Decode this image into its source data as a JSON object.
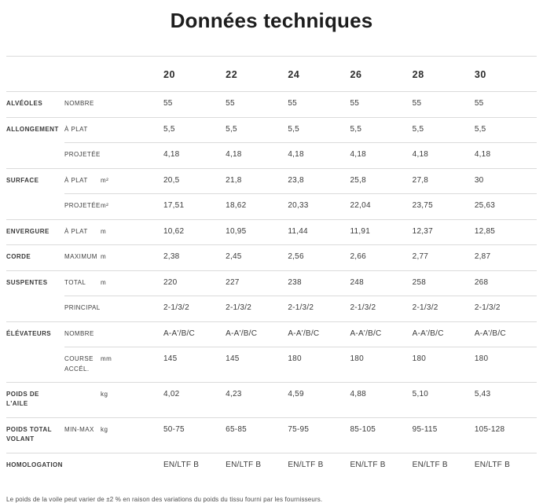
{
  "page": {
    "title": "Données techniques",
    "footnote": "Le poids de la voile peut varier de ±2 % en raison des variations du poids du tissu fourni par les fournisseurs."
  },
  "table": {
    "sizes": [
      "20",
      "22",
      "24",
      "26",
      "28",
      "30"
    ],
    "rows": [
      {
        "group": "ALVÉOLES",
        "sub": "NOMBRE",
        "unit": "",
        "values": [
          "55",
          "55",
          "55",
          "55",
          "55",
          "55"
        ]
      },
      {
        "group": "ALLONGEMENT",
        "sub": "À PLAT",
        "unit": "",
        "values": [
          "5,5",
          "5,5",
          "5,5",
          "5,5",
          "5,5",
          "5,5"
        ]
      },
      {
        "group": "",
        "sub": "PROJETÉE",
        "unit": "",
        "values": [
          "4,18",
          "4,18",
          "4,18",
          "4,18",
          "4,18",
          "4,18"
        ]
      },
      {
        "group": "SURFACE",
        "sub": "À PLAT",
        "unit": "m²",
        "values": [
          "20,5",
          "21,8",
          "23,8",
          "25,8",
          "27,8",
          "30"
        ]
      },
      {
        "group": "",
        "sub": "PROJETÉE",
        "unit": "m²",
        "values": [
          "17,51",
          "18,62",
          "20,33",
          "22,04",
          "23,75",
          "25,63"
        ]
      },
      {
        "group": "ENVERGURE",
        "sub": "À PLAT",
        "unit": "m",
        "values": [
          "10,62",
          "10,95",
          "11,44",
          "11,91",
          "12,37",
          "12,85"
        ]
      },
      {
        "group": "CORDE",
        "sub": "MAXIMUM",
        "unit": "m",
        "values": [
          "2,38",
          "2,45",
          "2,56",
          "2,66",
          "2,77",
          "2,87"
        ]
      },
      {
        "group": "SUSPENTES",
        "sub": "TOTAL",
        "unit": "m",
        "values": [
          "220",
          "227",
          "238",
          "248",
          "258",
          "268"
        ]
      },
      {
        "group": "",
        "sub": "PRINCIPAL",
        "unit": "",
        "values": [
          "2-1/3/2",
          "2-1/3/2",
          "2-1/3/2",
          "2-1/3/2",
          "2-1/3/2",
          "2-1/3/2"
        ]
      },
      {
        "group": "ÉLÉVATEURS",
        "sub": "NOMBRE",
        "unit": "",
        "values": [
          "A-A'/B/C",
          "A-A'/B/C",
          "A-A'/B/C",
          "A-A'/B/C",
          "A-A'/B/C",
          "A-A'/B/C"
        ]
      },
      {
        "group": "",
        "sub": "COURSE ACCÉL.",
        "unit": "mm",
        "values": [
          "145",
          "145",
          "180",
          "180",
          "180",
          "180"
        ]
      },
      {
        "group": "POIDS DE L'AILE",
        "sub": "",
        "unit": "kg",
        "values": [
          "4,02",
          "4,23",
          "4,59",
          "4,88",
          "5,10",
          "5,43"
        ]
      },
      {
        "group": "POIDS TOTAL VOLANT",
        "sub": "MIN-MAX",
        "unit": "kg",
        "values": [
          "50-75",
          "65-85",
          "75-95",
          "85-105",
          "95-115",
          "105-128"
        ]
      },
      {
        "group": "HOMOLOGATION",
        "sub": "",
        "unit": "",
        "values": [
          "EN/LTF B",
          "EN/LTF B",
          "EN/LTF B",
          "EN/LTF B",
          "EN/LTF B",
          "EN/LTF B"
        ]
      }
    ]
  }
}
